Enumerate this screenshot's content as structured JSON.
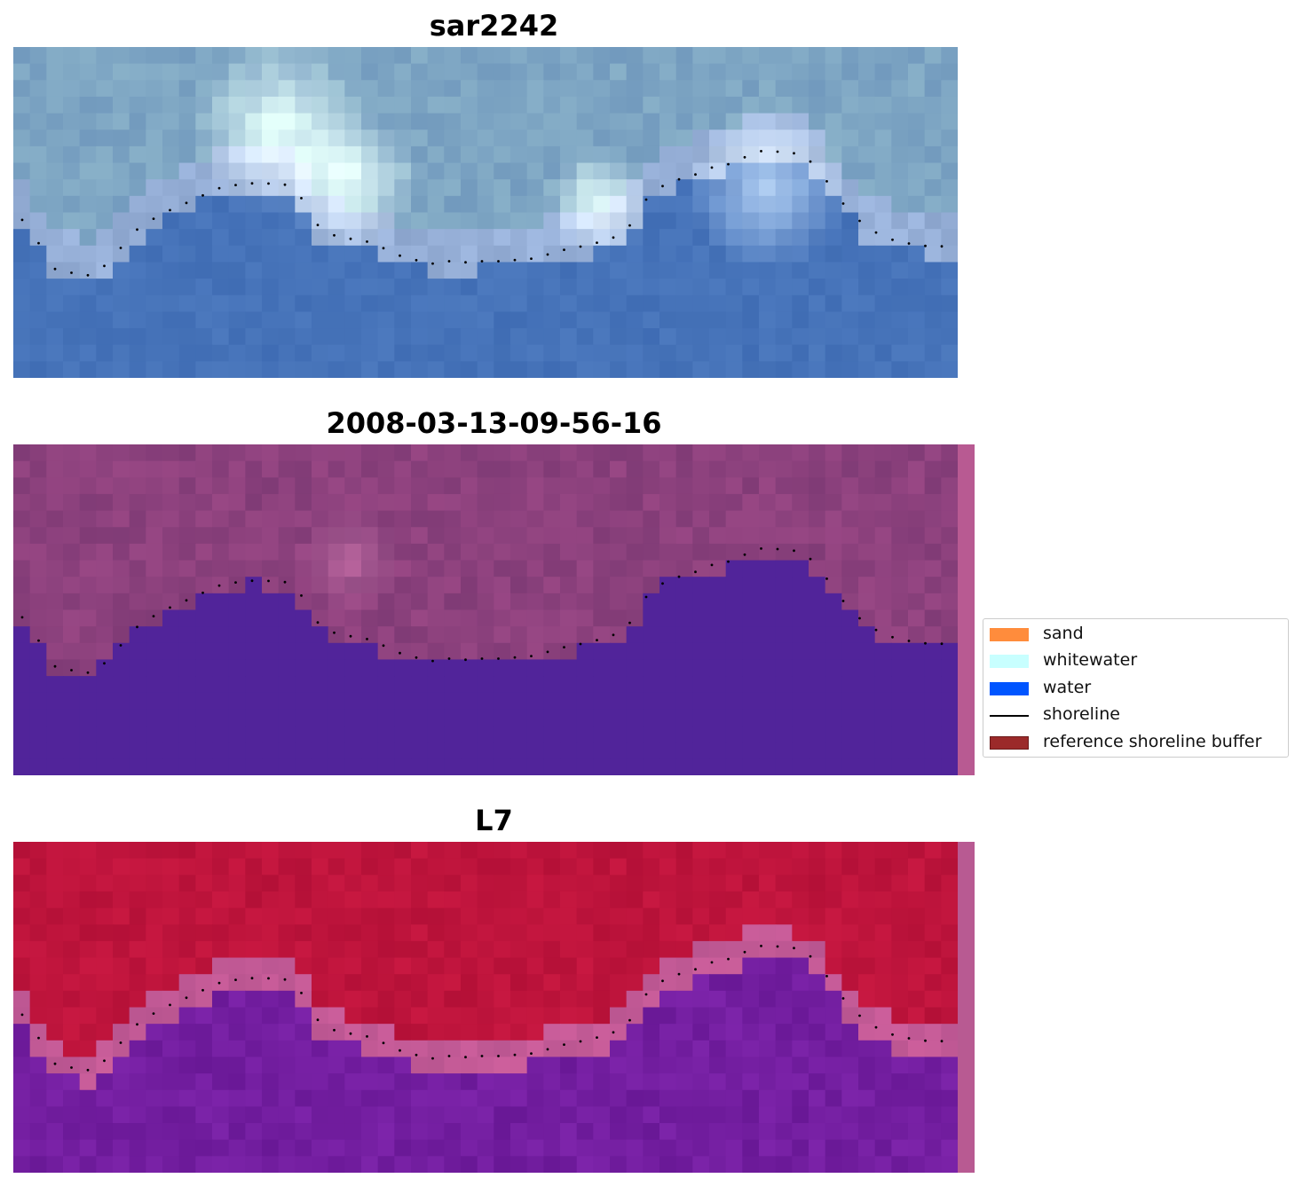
{
  "panels": [
    {
      "title": "sar2242",
      "style": "rgb"
    },
    {
      "title": "2008-03-13-09-56-16",
      "style": "classified"
    },
    {
      "title": "L7",
      "style": "index"
    }
  ],
  "legend": {
    "items": [
      {
        "label": "sand",
        "color": "#ff8c3c",
        "kind": "patch"
      },
      {
        "label": "whitewater",
        "color": "#c8ffff",
        "kind": "patch"
      },
      {
        "label": "water",
        "color": "#0055ff",
        "kind": "patch"
      },
      {
        "label": "shoreline",
        "color": "#000000",
        "kind": "line"
      },
      {
        "label": "reference shoreline buffer",
        "color": "#9b2a2a",
        "kind": "patch"
      }
    ]
  },
  "colors": {
    "water_class": "#51249a",
    "buffer_strip": "#b85a92",
    "shoreline_dots": "#000000"
  }
}
